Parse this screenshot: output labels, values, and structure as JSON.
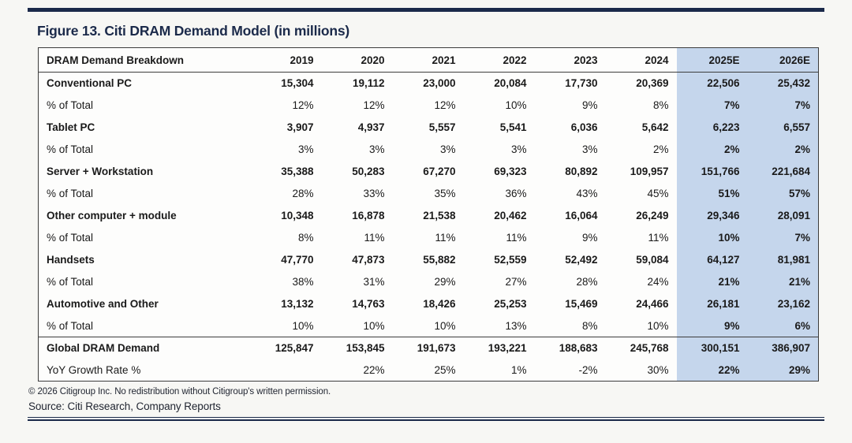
{
  "figure": {
    "title": "Figure 13. Citi DRAM Demand Model (in millions)"
  },
  "chart_data": {
    "type": "table",
    "title": "Figure 13. Citi DRAM Demand Model (in millions)",
    "columns": [
      "DRAM Demand Breakdown",
      "2019",
      "2020",
      "2021",
      "2022",
      "2023",
      "2024",
      "2025E",
      "2026E"
    ],
    "highlight_columns": [
      "2025E",
      "2026E"
    ],
    "rows": [
      {
        "label": "Conventional PC",
        "emphasis": true,
        "total": false,
        "values": [
          "15,304",
          "19,112",
          "23,000",
          "20,084",
          "17,730",
          "20,369",
          "22,506",
          "25,432"
        ]
      },
      {
        "label": "% of Total",
        "emphasis": false,
        "total": false,
        "values": [
          "12%",
          "12%",
          "12%",
          "10%",
          "9%",
          "8%",
          "7%",
          "7%"
        ]
      },
      {
        "label": "Tablet PC",
        "emphasis": true,
        "total": false,
        "values": [
          "3,907",
          "4,937",
          "5,557",
          "5,541",
          "6,036",
          "5,642",
          "6,223",
          "6,557"
        ]
      },
      {
        "label": "% of Total",
        "emphasis": false,
        "total": false,
        "values": [
          "3%",
          "3%",
          "3%",
          "3%",
          "3%",
          "2%",
          "2%",
          "2%"
        ]
      },
      {
        "label": "Server + Workstation",
        "emphasis": true,
        "total": false,
        "values": [
          "35,388",
          "50,283",
          "67,270",
          "69,323",
          "80,892",
          "109,957",
          "151,766",
          "221,684"
        ]
      },
      {
        "label": "% of Total",
        "emphasis": false,
        "total": false,
        "values": [
          "28%",
          "33%",
          "35%",
          "36%",
          "43%",
          "45%",
          "51%",
          "57%"
        ]
      },
      {
        "label": "Other computer + module",
        "emphasis": true,
        "total": false,
        "values": [
          "10,348",
          "16,878",
          "21,538",
          "20,462",
          "16,064",
          "26,249",
          "29,346",
          "28,091"
        ]
      },
      {
        "label": "% of Total",
        "emphasis": false,
        "total": false,
        "values": [
          "8%",
          "11%",
          "11%",
          "11%",
          "9%",
          "11%",
          "10%",
          "7%"
        ]
      },
      {
        "label": "Handsets",
        "emphasis": true,
        "total": false,
        "values": [
          "47,770",
          "47,873",
          "55,882",
          "52,559",
          "52,492",
          "59,084",
          "64,127",
          "81,981"
        ]
      },
      {
        "label": "% of Total",
        "emphasis": false,
        "total": false,
        "values": [
          "38%",
          "31%",
          "29%",
          "27%",
          "28%",
          "24%",
          "21%",
          "21%"
        ]
      },
      {
        "label": "Automotive and Other",
        "emphasis": true,
        "total": false,
        "values": [
          "13,132",
          "14,763",
          "18,426",
          "25,253",
          "15,469",
          "24,466",
          "26,181",
          "23,162"
        ]
      },
      {
        "label": "% of Total",
        "emphasis": false,
        "total": false,
        "values": [
          "10%",
          "10%",
          "10%",
          "13%",
          "8%",
          "10%",
          "9%",
          "6%"
        ]
      },
      {
        "label": "Global DRAM Demand",
        "emphasis": true,
        "total": true,
        "values": [
          "125,847",
          "153,845",
          "191,673",
          "193,221",
          "188,683",
          "245,768",
          "300,151",
          "386,907"
        ]
      },
      {
        "label": "YoY Growth Rate %",
        "emphasis": false,
        "total": false,
        "values": [
          "",
          "22%",
          "25%",
          "1%",
          "-2%",
          "30%",
          "22%",
          "29%"
        ]
      }
    ]
  },
  "footer": {
    "copyright": "© 2026 Citigroup Inc. No redistribution without Citigroup's written permission.",
    "source": "Source: Citi Research, Company Reports"
  },
  "colors": {
    "accent_navy": "#1b2a4a",
    "highlight_blue": "#c5d6ec",
    "table_border": "#3c3c3c",
    "page_background": "#f7f7f4"
  }
}
